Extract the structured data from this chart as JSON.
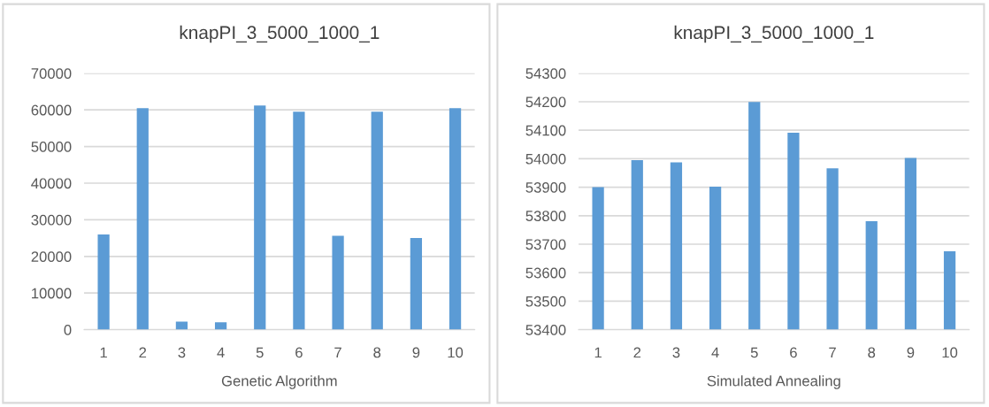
{
  "chart_data": [
    {
      "type": "bar",
      "title": "knapPI_3_5000_1000_1",
      "xlabel": "Genetic Algorithm",
      "categories": [
        "1",
        "2",
        "3",
        "4",
        "5",
        "6",
        "7",
        "8",
        "9",
        "10"
      ],
      "values": [
        26000,
        60500,
        2200,
        2000,
        61200,
        59500,
        25600,
        59500,
        25000,
        60500
      ],
      "color": "#5b9bd5",
      "ylim": [
        0,
        70000
      ],
      "yticks": [
        0,
        10000,
        20000,
        30000,
        40000,
        50000,
        60000,
        70000
      ],
      "grid": "y"
    },
    {
      "type": "bar",
      "title": "knapPI_3_5000_1000_1",
      "xlabel": "Simulated Annealing",
      "categories": [
        "1",
        "2",
        "3",
        "4",
        "5",
        "6",
        "7",
        "8",
        "9",
        "10"
      ],
      "values": [
        53900,
        53995,
        53987,
        53902,
        54199,
        54091,
        53966,
        53781,
        54003,
        53675
      ],
      "color": "#5b9bd5",
      "ylim": [
        53400,
        54300
      ],
      "yticks": [
        53400,
        53500,
        53600,
        53700,
        53800,
        53900,
        54000,
        54100,
        54200,
        54300
      ],
      "grid": "y"
    }
  ]
}
